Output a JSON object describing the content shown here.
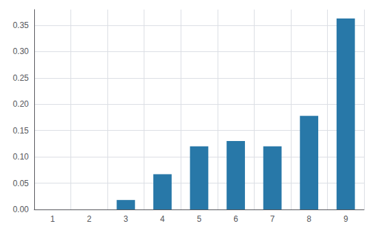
{
  "chart_data": {
    "type": "bar",
    "categories": [
      "1",
      "2",
      "3",
      "4",
      "5",
      "6",
      "7",
      "8",
      "9"
    ],
    "values": [
      0.0,
      0.0,
      0.018,
      0.067,
      0.12,
      0.13,
      0.12,
      0.178,
      0.363
    ],
    "color": "#2878a8",
    "ylim": [
      0,
      0.38
    ],
    "yticks": [
      {
        "value": 0.0,
        "label": "0.00"
      },
      {
        "value": 0.05,
        "label": "0.05"
      },
      {
        "value": 0.1,
        "label": "0.10"
      },
      {
        "value": 0.15,
        "label": "0.15"
      },
      {
        "value": 0.2,
        "label": "0.20"
      },
      {
        "value": 0.25,
        "label": "0.25"
      },
      {
        "value": 0.3,
        "label": "0.30"
      },
      {
        "value": 0.35,
        "label": "0.35"
      }
    ],
    "grid": true
  }
}
